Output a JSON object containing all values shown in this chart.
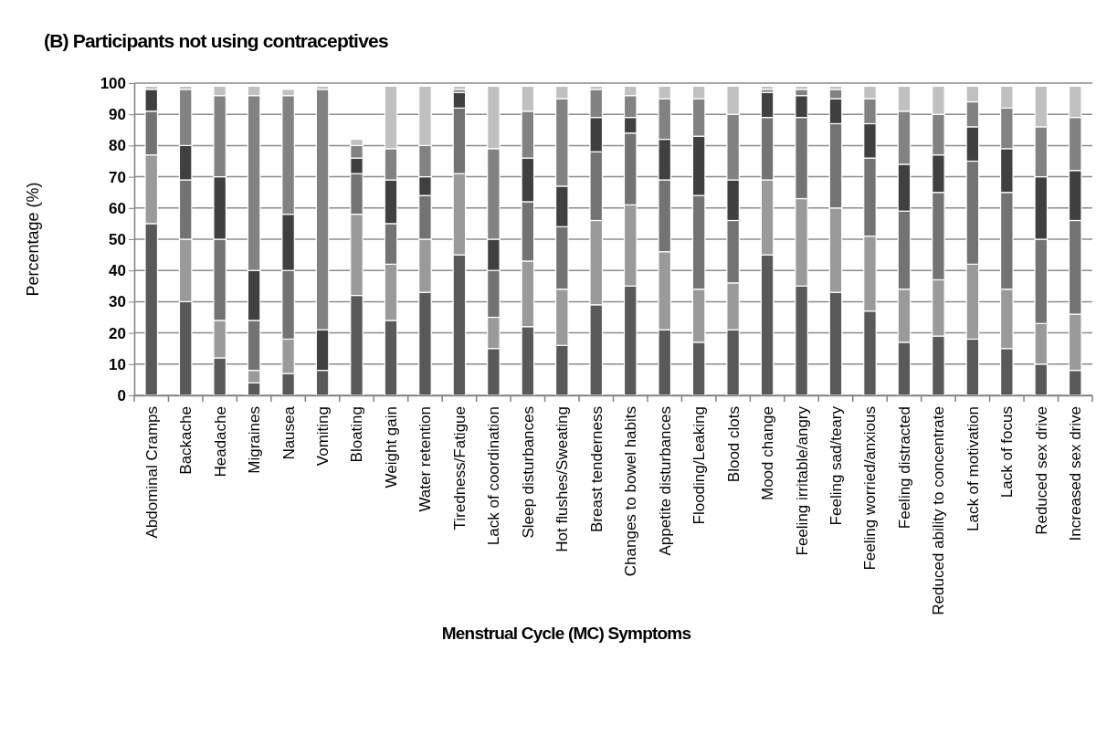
{
  "chart_data": {
    "type": "bar",
    "stacked": true,
    "title": "(B) Participants not using contraceptives",
    "xlabel": "Menstrual Cycle (MC) Symptoms",
    "ylabel": "Percentage (%)",
    "categories": [
      "Abdominal Cramps",
      "Backache",
      "Headache",
      "Migraines",
      "Nausea",
      "Vomiting",
      "Bloating",
      "Weight gain",
      "Water retention",
      "Tiredness/Fatigue",
      "Lack of coordination",
      "Sleep disturbances",
      "Hot flushes/Sweating",
      "Breast tenderness",
      "Changes to bowel habits",
      "Appetite disturbances",
      "Flooding/Leaking",
      "Blood clots",
      "Mood change",
      "Feeling irritable/angry",
      "Feeling sad/teary",
      "Feeling worried/anxious",
      "Feeling distracted",
      "Reduced ability to concentrate",
      "Lack of motivation",
      "Lack of focus",
      "Reduced sex drive",
      "Increased sex drive"
    ],
    "series": [
      {
        "color": "#595959",
        "values": [
          55,
          30,
          12,
          4,
          7,
          8,
          32,
          24,
          33,
          45,
          15,
          22,
          16,
          29,
          35,
          21,
          17,
          21,
          45,
          35,
          33,
          27,
          17,
          19,
          18,
          15,
          10,
          8
        ]
      },
      {
        "color": "#9a9a9a",
        "values": [
          22,
          20,
          12,
          4,
          11,
          0,
          26,
          18,
          17,
          26,
          10,
          21,
          18,
          27,
          26,
          25,
          17,
          15,
          24,
          28,
          27,
          24,
          17,
          18,
          24,
          19,
          13,
          18
        ]
      },
      {
        "color": "#737373",
        "values": [
          14,
          19,
          26,
          16,
          22,
          0,
          13,
          13,
          14,
          21,
          15,
          19,
          20,
          22,
          23,
          23,
          30,
          20,
          20,
          26,
          27,
          25,
          25,
          28,
          33,
          31,
          27,
          30
        ]
      },
      {
        "color": "#404040",
        "values": [
          7,
          11,
          20,
          16,
          18,
          13,
          5,
          14,
          6,
          5,
          10,
          14,
          13,
          11,
          5,
          13,
          19,
          13,
          8,
          7,
          8,
          11,
          15,
          12,
          11,
          14,
          20,
          16
        ]
      },
      {
        "color": "#828282",
        "values": [
          0,
          18,
          26,
          56,
          38,
          77,
          4,
          10,
          10,
          1,
          29,
          15,
          28,
          9,
          7,
          13,
          12,
          21,
          1,
          2,
          3,
          8,
          17,
          13,
          8,
          13,
          16,
          17
        ]
      },
      {
        "color": "#c0c0c0",
        "values": [
          1,
          1,
          3,
          3,
          2,
          1,
          2,
          20,
          19,
          1,
          20,
          8,
          4,
          1,
          3,
          4,
          4,
          9,
          1,
          1,
          1,
          4,
          8,
          9,
          5,
          7,
          13,
          10
        ]
      }
    ],
    "ylim": [
      0,
      100
    ],
    "yticks": [
      0,
      10,
      20,
      30,
      40,
      50,
      60,
      70,
      80,
      90,
      100
    ],
    "grid": "y"
  }
}
